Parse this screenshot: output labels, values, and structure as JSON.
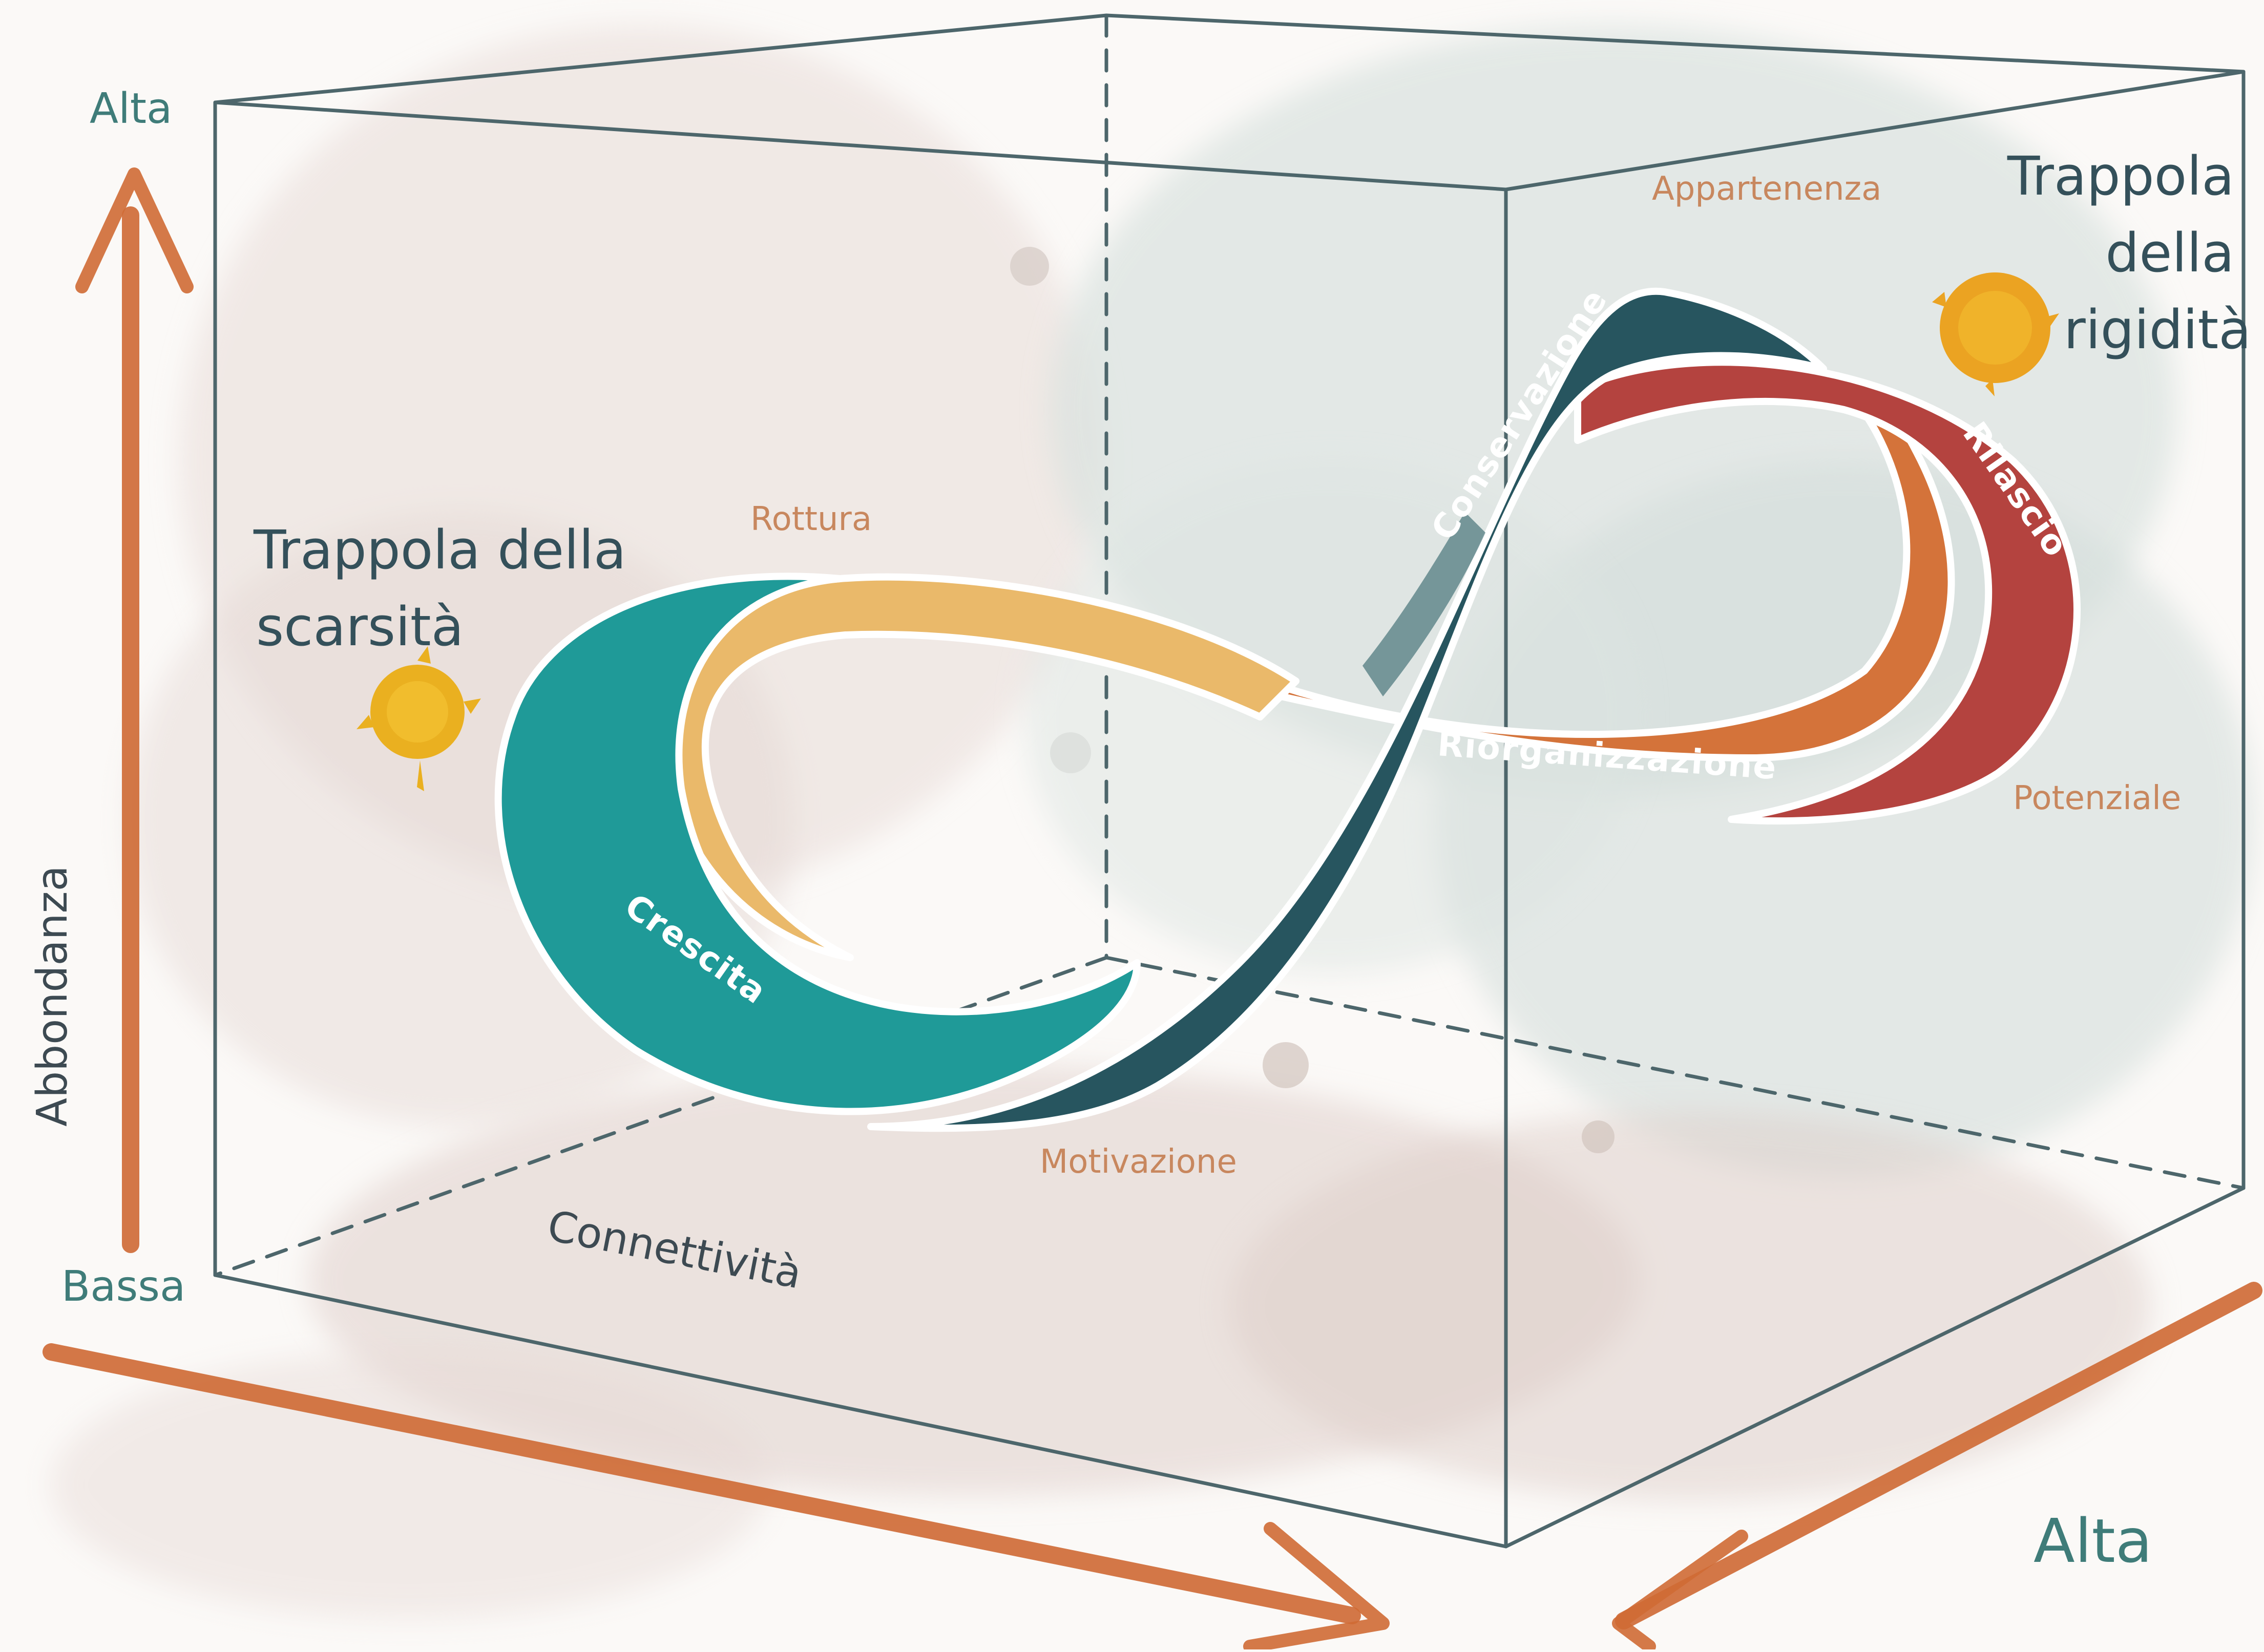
{
  "axes": {
    "vertical": {
      "name": "Abbondanza",
      "high": "Alta",
      "low": "Bassa"
    },
    "horizontal": {
      "name": "Connettività",
      "high": "Alta"
    }
  },
  "traps": {
    "scarcity": [
      "Trappola della",
      "scarsità"
    ],
    "rigidity": [
      "Trappola",
      "della",
      "rigidità"
    ]
  },
  "phases": {
    "growth": "Crescita",
    "conservation": "Conservazione",
    "release": "Rilascio",
    "reorganization": "Riorganizzazione"
  },
  "qualities": {
    "rottura": "Rottura",
    "appartenenza": "Appartenenza",
    "potenziale": "Potenziale",
    "motivazione": "Motivazione"
  },
  "colors": {
    "growth": "#1f9a98",
    "conservation": "#27555f",
    "release": "#b4433f",
    "reorganization": "#d4733a",
    "rupture_band": "#eab96a",
    "axis_arrow": "#cf6a34",
    "axis_text": "#3f7c79",
    "trap_text": "#34505a",
    "small_label": "#c8875e",
    "sun": "#eab020",
    "box_line": "#4d666b"
  }
}
